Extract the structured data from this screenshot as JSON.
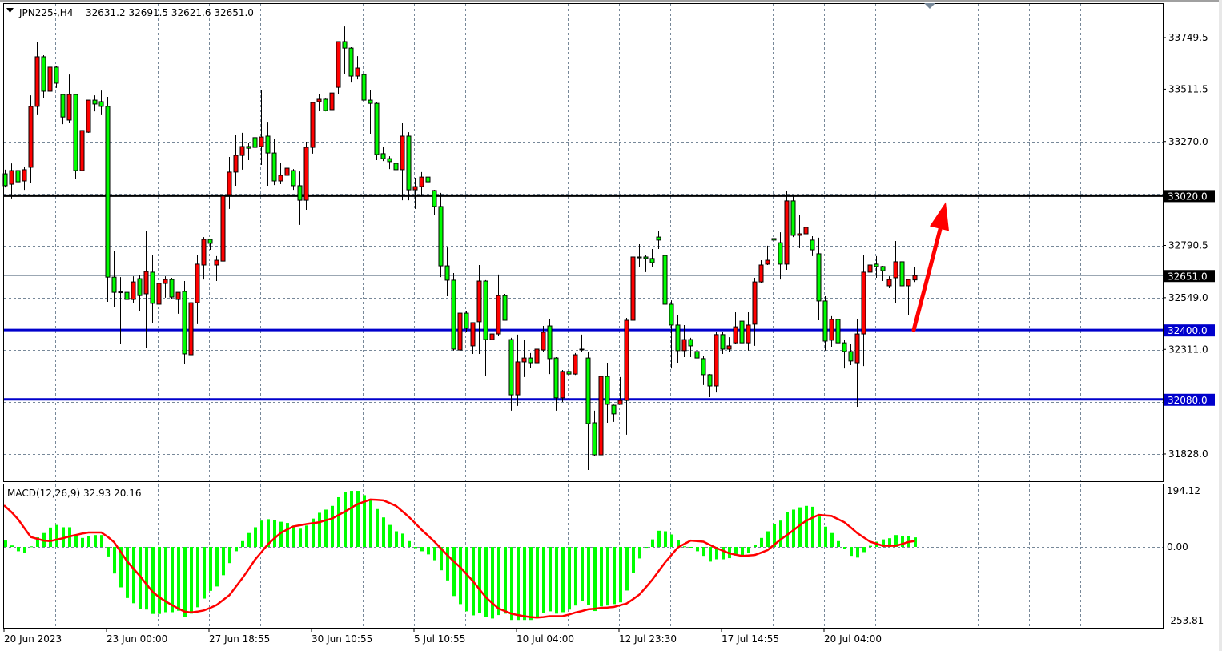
{
  "header": {
    "symbol": "JPN225-,H4",
    "ohlc": "32631.2 32691.5 32621.6 32651.0"
  },
  "macd_label": "MACD(12,26,9) 32.93 20.16",
  "colors": {
    "bull": "#ff0000",
    "bear": "#00ff00",
    "wick": "#000000",
    "grid": "#778899",
    "histogram": "#00ff00",
    "signal": "#ff0000",
    "arrow": "#ff0000"
  },
  "chart_data": [
    {
      "type": "candlestick",
      "title": "JPN225-,H4",
      "ylim": [
        31700,
        33820
      ],
      "grid": true,
      "y_ticks": [
        {
          "value": 33749.5,
          "label": "33749.5"
        },
        {
          "value": 33511.5,
          "label": "33511.5"
        },
        {
          "value": 33270.0,
          "label": "33270.0"
        },
        {
          "value": 32790.5,
          "label": "32790.5"
        },
        {
          "value": 32549.0,
          "label": "32549.0"
        },
        {
          "value": 32311.0,
          "label": "32311.0"
        },
        {
          "value": 31828.0,
          "label": "31828.0"
        }
      ],
      "x_ticks": [
        {
          "bar": 1,
          "label": "20 Jun 2023"
        },
        {
          "bar": 17,
          "label": "23 Jun 00:00"
        },
        {
          "bar": 33,
          "label": "27 Jun 18:55"
        },
        {
          "bar": 49,
          "label": "30 Jun 10:55"
        },
        {
          "bar": 65,
          "label": "5 Jul 10:55"
        },
        {
          "bar": 81,
          "label": "10 Jul 04:00"
        },
        {
          "bar": 97,
          "label": "12 Jul 23:30"
        },
        {
          "bar": 113,
          "label": "17 Jul 14:55"
        },
        {
          "bar": 129,
          "label": "20 Jul 04:00"
        }
      ],
      "levels": [
        {
          "price": 33020.0,
          "label": "33020.0",
          "color": "#000000"
        },
        {
          "price": 32400.0,
          "label": "32400.0",
          "color": "#0000cc"
        },
        {
          "price": 32080.0,
          "label": "32080.0",
          "color": "#0000cc"
        }
      ],
      "current_price": {
        "price": 32651.0,
        "label": "32651.0"
      },
      "annotation": {
        "type": "arrow-up",
        "from_bar": 143,
        "from_price": 32400,
        "to_bar": 148,
        "to_price": 32990
      },
      "ohlc": [
        [
          33121,
          33140,
          33058,
          33066
        ],
        [
          33073,
          33169,
          33007,
          33136
        ],
        [
          33136,
          33158,
          33073,
          33084
        ],
        [
          33088,
          33154,
          33047,
          33140
        ],
        [
          33151,
          33483,
          33080,
          33432
        ],
        [
          33432,
          33731,
          33395,
          33661
        ],
        [
          33661,
          33668,
          33472,
          33502
        ],
        [
          33502,
          33624,
          33461,
          33613
        ],
        [
          33613,
          33618,
          33517,
          33539
        ],
        [
          33487,
          33490,
          33350,
          33383
        ],
        [
          33369,
          33579,
          33358,
          33487
        ],
        [
          33487,
          33490,
          33099,
          33136
        ],
        [
          33136,
          33402,
          33106,
          33321
        ],
        [
          33313,
          33461,
          33310,
          33461
        ],
        [
          33461,
          33483,
          33409,
          33443
        ],
        [
          33454,
          33505,
          33395,
          33432
        ],
        [
          33432,
          33476,
          32530,
          32644
        ],
        [
          32644,
          32763,
          32508,
          32574
        ],
        [
          32574,
          32644,
          32338,
          32576
        ],
        [
          32574,
          32715,
          32519,
          32541
        ],
        [
          32541,
          32648,
          32526,
          32622
        ],
        [
          32637,
          32652,
          32486,
          32559
        ],
        [
          32567,
          32855,
          32316,
          32670
        ],
        [
          32667,
          32748,
          32434,
          32523
        ],
        [
          32519,
          32674,
          32464,
          32615
        ],
        [
          32615,
          32648,
          32549,
          32633
        ],
        [
          32633,
          32641,
          32545,
          32552
        ],
        [
          32541,
          32574,
          32475,
          32574
        ],
        [
          32578,
          32626,
          32242,
          32290
        ],
        [
          32286,
          32597,
          32279,
          32526
        ],
        [
          32526,
          32748,
          32427,
          32704
        ],
        [
          32700,
          32829,
          32633,
          32818
        ],
        [
          32818,
          32822,
          32770,
          32800
        ],
        [
          32700,
          32741,
          32626,
          32722
        ],
        [
          32718,
          33058,
          32578,
          33018
        ],
        [
          33025,
          33199,
          32959,
          33129
        ],
        [
          33129,
          33302,
          33066,
          33206
        ],
        [
          33206,
          33310,
          33140,
          33247
        ],
        [
          33247,
          33265,
          33184,
          33239
        ],
        [
          33288,
          33324,
          33232,
          33243
        ],
        [
          33247,
          33509,
          33162,
          33291
        ],
        [
          33295,
          33361,
          33066,
          33217
        ],
        [
          33217,
          33280,
          33069,
          33088
        ],
        [
          33088,
          33173,
          33073,
          33114
        ],
        [
          33114,
          33173,
          33103,
          33147
        ],
        [
          33136,
          33143,
          33047,
          33066
        ],
        [
          33066,
          33132,
          32885,
          32999
        ],
        [
          32999,
          33269,
          32955,
          33243
        ],
        [
          33243,
          33454,
          33214,
          33450
        ],
        [
          33454,
          33490,
          33413,
          33465
        ],
        [
          33465,
          33468,
          33409,
          33413
        ],
        [
          33417,
          33498,
          33409,
          33494
        ],
        [
          33520,
          33731,
          33491,
          33731
        ],
        [
          33731,
          33801,
          33583,
          33701
        ],
        [
          33701,
          33705,
          33542,
          33572
        ],
        [
          33572,
          33664,
          33557,
          33609
        ],
        [
          33579,
          33590,
          33446,
          33461
        ],
        [
          33461,
          33509,
          33306,
          33446
        ],
        [
          33446,
          33450,
          33184,
          33210
        ],
        [
          33214,
          33247,
          33180,
          33191
        ],
        [
          33191,
          33202,
          33143,
          33177
        ],
        [
          33169,
          33202,
          33121,
          33140
        ],
        [
          33140,
          33358,
          32999,
          33295
        ],
        [
          33295,
          33313,
          32999,
          33047
        ],
        [
          33047,
          33103,
          32959,
          33062
        ],
        [
          33062,
          33129,
          33025,
          33106
        ],
        [
          33106,
          33129,
          33073,
          33084
        ],
        [
          33044,
          33047,
          32929,
          32970
        ],
        [
          32970,
          33033,
          32644,
          32696
        ],
        [
          32696,
          32781,
          32556,
          32630
        ],
        [
          32630,
          32663,
          32305,
          32312
        ],
        [
          32308,
          32482,
          32212,
          32478
        ],
        [
          32478,
          32489,
          32390,
          32408
        ],
        [
          32327,
          32434,
          32290,
          32434
        ],
        [
          32438,
          32700,
          32290,
          32626
        ],
        [
          32626,
          32630,
          32190,
          32356
        ],
        [
          32356,
          32456,
          32268,
          32382
        ],
        [
          32382,
          32656,
          32371,
          32559
        ],
        [
          32559,
          32567,
          32445,
          32445
        ],
        [
          32356,
          32364,
          32028,
          32101
        ],
        [
          32101,
          32379,
          32050,
          32253
        ],
        [
          32253,
          32356,
          32183,
          32271
        ],
        [
          32271,
          32294,
          32227,
          32249
        ],
        [
          32249,
          32312,
          32227,
          32312
        ],
        [
          32308,
          32419,
          32297,
          32390
        ],
        [
          32419,
          32449,
          32197,
          32268
        ],
        [
          32271,
          32275,
          32028,
          32087
        ],
        [
          32087,
          32216,
          32068,
          32209
        ],
        [
          32209,
          32234,
          32149,
          32197
        ],
        [
          32197,
          32294,
          32193,
          32286
        ],
        [
          32312,
          32379,
          32301,
          32310
        ],
        [
          32271,
          32297,
          31754,
          31968
        ],
        [
          31972,
          32028,
          31817,
          31824
        ],
        [
          31824,
          32223,
          31798,
          32186
        ],
        [
          32186,
          32249,
          31972,
          32057
        ],
        [
          32053,
          32056,
          31976,
          32013
        ],
        [
          32057,
          32183,
          32055,
          32075
        ],
        [
          32075,
          32456,
          31917,
          32445
        ],
        [
          32445,
          32763,
          32341,
          32737
        ],
        [
          32737,
          32796,
          32689,
          32733
        ],
        [
          32737,
          32748,
          32667,
          32730
        ],
        [
          32730,
          32774,
          32689,
          32711
        ],
        [
          32829,
          32855,
          32774,
          32815
        ],
        [
          32744,
          32770,
          32183,
          32519
        ],
        [
          32519,
          32537,
          32223,
          32423
        ],
        [
          32423,
          32467,
          32249,
          32305
        ],
        [
          32305,
          32423,
          32275,
          32356
        ],
        [
          32356,
          32364,
          32275,
          32327
        ],
        [
          32301,
          32305,
          32216,
          32271
        ],
        [
          32268,
          32279,
          32146,
          32194
        ],
        [
          32194,
          32197,
          32090,
          32142
        ],
        [
          32142,
          32393,
          32112,
          32379
        ],
        [
          32379,
          32393,
          32290,
          32312
        ],
        [
          32312,
          32367,
          32297,
          32327
        ],
        [
          32341,
          32482,
          32334,
          32415
        ],
        [
          32441,
          32685,
          32323,
          32341
        ],
        [
          32341,
          32482,
          32305,
          32423
        ],
        [
          32427,
          32641,
          32327,
          32622
        ],
        [
          32622,
          32722,
          32618,
          32700
        ],
        [
          32704,
          32789,
          32700,
          32722
        ],
        [
          32822,
          32863,
          32811,
          32815
        ],
        [
          32803,
          32851,
          32633,
          32704
        ],
        [
          32704,
          33040,
          32678,
          32996
        ],
        [
          32996,
          33018,
          32829,
          32837
        ],
        [
          32837,
          32929,
          32778,
          32844
        ],
        [
          32844,
          32892,
          32837,
          32874
        ],
        [
          32815,
          32833,
          32741,
          32770
        ],
        [
          32752,
          32826,
          32445,
          32534
        ],
        [
          32534,
          32556,
          32305,
          32349
        ],
        [
          32353,
          32464,
          32323,
          32449
        ],
        [
          32449,
          32489,
          32323,
          32341
        ],
        [
          32341,
          32353,
          32223,
          32301
        ],
        [
          32301,
          32338,
          32238,
          32257
        ],
        [
          32249,
          32452,
          32046,
          32382
        ],
        [
          32382,
          32748,
          32234,
          32667
        ],
        [
          32667,
          32744,
          32633,
          32700
        ],
        [
          32704,
          32741,
          32641,
          32693
        ],
        [
          32693,
          32696,
          32626,
          32674
        ],
        [
          32604,
          32648,
          32593,
          32633
        ],
        [
          32641,
          32811,
          32526,
          32715
        ],
        [
          32715,
          32730,
          32574,
          32604
        ],
        [
          32604,
          32633,
          32471,
          32633
        ],
        [
          32631.2,
          32691.5,
          32621.6,
          32651.0
        ]
      ]
    },
    {
      "type": "bar",
      "title": "MACD(12,26,9) 32.93 20.16",
      "ylim": [
        -253.81,
        194.12
      ],
      "y_ticks": [
        {
          "value": 194.12,
          "label": "194.12"
        },
        {
          "value": 0,
          "label": "0.00"
        },
        {
          "value": -253.81,
          "label": "-253.81"
        }
      ],
      "histogram": [
        22,
        5,
        -15,
        -22,
        2,
        33,
        48,
        67,
        76,
        68,
        68,
        39,
        31,
        37,
        41,
        41,
        -33,
        -92,
        -140,
        -177,
        -195,
        -215,
        -217,
        -232,
        -232,
        -226,
        -226,
        -221,
        -242,
        -231,
        -209,
        -179,
        -152,
        -137,
        -98,
        -56,
        -15,
        20,
        48,
        68,
        91,
        96,
        92,
        87,
        83,
        74,
        63,
        74,
        98,
        118,
        129,
        142,
        172,
        190,
        194,
        194,
        179,
        161,
        131,
        102,
        76,
        54,
        46,
        20,
        -4,
        -15,
        -26,
        -46,
        -81,
        -116,
        -170,
        -198,
        -223,
        -237,
        -228,
        -242,
        -248,
        -236,
        -231,
        -253,
        -253,
        -253,
        -253,
        -245,
        -229,
        -223,
        -231,
        -226,
        -217,
        -203,
        -188,
        -201,
        -222,
        -206,
        -203,
        -198,
        -192,
        -151,
        -89,
        -40,
        -3,
        26,
        56,
        54,
        43,
        23,
        2,
        0,
        -15,
        -31,
        -51,
        -43,
        -43,
        -39,
        -30,
        -28,
        -22,
        6,
        31,
        54,
        79,
        91,
        120,
        129,
        137,
        142,
        139,
        105,
        70,
        48,
        20,
        -7,
        -31,
        -37,
        -18,
        4,
        18,
        26,
        30,
        41,
        37,
        37,
        32.93
      ],
      "signal": [
        144,
        120,
        96,
        65,
        34,
        28,
        22,
        20,
        25,
        30,
        36,
        41,
        46,
        50,
        50,
        50,
        35,
        16,
        -16,
        -49,
        -75,
        -100,
        -128,
        -155,
        -174,
        -188,
        -201,
        -213,
        -224,
        -227,
        -224,
        -220,
        -211,
        -201,
        -184,
        -167,
        -138,
        -109,
        -77,
        -44,
        -18,
        9,
        29,
        48,
        60,
        71,
        75,
        79,
        82,
        85,
        92,
        98,
        110,
        122,
        135,
        148,
        156,
        164,
        163,
        161,
        152,
        142,
        123,
        104,
        82,
        59,
        39,
        18,
        -5,
        -28,
        -50,
        -70,
        -94,
        -118,
        -146,
        -174,
        -194,
        -213,
        -222,
        -231,
        -236,
        -240,
        -243,
        -245,
        -243,
        -240,
        -240,
        -240,
        -234,
        -227,
        -222,
        -216,
        -214,
        -211,
        -210,
        -208,
        -202,
        -196,
        -181,
        -165,
        -140,
        -114,
        -84,
        -54,
        -28,
        -2,
        10,
        22,
        20,
        18,
        7,
        -4,
        -13,
        -22,
        -27,
        -31,
        -30,
        -28,
        -20,
        -11,
        7,
        25,
        41,
        57,
        74,
        90,
        101,
        111,
        109,
        107,
        96,
        85,
        67,
        48,
        33,
        18,
        11,
        4,
        4,
        4,
        10,
        17,
        20.16
      ]
    }
  ]
}
